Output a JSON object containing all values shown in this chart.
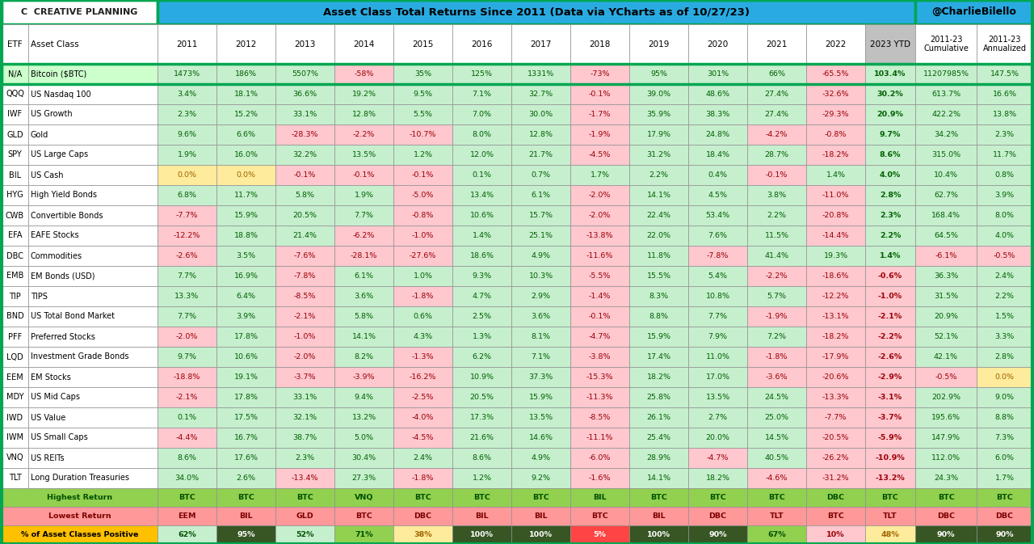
{
  "title": "Asset Class Total Returns Since 2011 (Data via YCharts as of 10/27/23)",
  "logo_text": "C  CREATIVE PLANNING",
  "twitter": "@CharlieBilello",
  "rows": [
    {
      "etf": "N/A",
      "name": "Bitcoin ($BTC)",
      "vals": [
        "1473%",
        "186%",
        "5507%",
        "-58%",
        "35%",
        "125%",
        "1331%",
        "-73%",
        "95%",
        "301%",
        "66%",
        "-65.5%",
        "103.4%",
        "11207985%",
        "147.5%"
      ]
    },
    {
      "etf": "QQQ",
      "name": "US Nasdaq 100",
      "vals": [
        "3.4%",
        "18.1%",
        "36.6%",
        "19.2%",
        "9.5%",
        "7.1%",
        "32.7%",
        "-0.1%",
        "39.0%",
        "48.6%",
        "27.4%",
        "-32.6%",
        "30.2%",
        "613.7%",
        "16.6%"
      ]
    },
    {
      "etf": "IWF",
      "name": "US Growth",
      "vals": [
        "2.3%",
        "15.2%",
        "33.1%",
        "12.8%",
        "5.5%",
        "7.0%",
        "30.0%",
        "-1.7%",
        "35.9%",
        "38.3%",
        "27.4%",
        "-29.3%",
        "20.9%",
        "422.2%",
        "13.8%"
      ]
    },
    {
      "etf": "GLD",
      "name": "Gold",
      "vals": [
        "9.6%",
        "6.6%",
        "-28.3%",
        "-2.2%",
        "-10.7%",
        "8.0%",
        "12.8%",
        "-1.9%",
        "17.9%",
        "24.8%",
        "-4.2%",
        "-0.8%",
        "9.7%",
        "34.2%",
        "2.3%"
      ]
    },
    {
      "etf": "SPY",
      "name": "US Large Caps",
      "vals": [
        "1.9%",
        "16.0%",
        "32.2%",
        "13.5%",
        "1.2%",
        "12.0%",
        "21.7%",
        "-4.5%",
        "31.2%",
        "18.4%",
        "28.7%",
        "-18.2%",
        "8.6%",
        "315.0%",
        "11.7%"
      ]
    },
    {
      "etf": "BIL",
      "name": "US Cash",
      "vals": [
        "0.0%",
        "0.0%",
        "-0.1%",
        "-0.1%",
        "-0.1%",
        "0.1%",
        "0.7%",
        "1.7%",
        "2.2%",
        "0.4%",
        "-0.1%",
        "1.4%",
        "4.0%",
        "10.4%",
        "0.8%"
      ]
    },
    {
      "etf": "HYG",
      "name": "High Yield Bonds",
      "vals": [
        "6.8%",
        "11.7%",
        "5.8%",
        "1.9%",
        "-5.0%",
        "13.4%",
        "6.1%",
        "-2.0%",
        "14.1%",
        "4.5%",
        "3.8%",
        "-11.0%",
        "2.8%",
        "62.7%",
        "3.9%"
      ]
    },
    {
      "etf": "CWB",
      "name": "Convertible Bonds",
      "vals": [
        "-7.7%",
        "15.9%",
        "20.5%",
        "7.7%",
        "-0.8%",
        "10.6%",
        "15.7%",
        "-2.0%",
        "22.4%",
        "53.4%",
        "2.2%",
        "-20.8%",
        "2.3%",
        "168.4%",
        "8.0%"
      ]
    },
    {
      "etf": "EFA",
      "name": "EAFE Stocks",
      "vals": [
        "-12.2%",
        "18.8%",
        "21.4%",
        "-6.2%",
        "-1.0%",
        "1.4%",
        "25.1%",
        "-13.8%",
        "22.0%",
        "7.6%",
        "11.5%",
        "-14.4%",
        "2.2%",
        "64.5%",
        "4.0%"
      ]
    },
    {
      "etf": "DBC",
      "name": "Commodities",
      "vals": [
        "-2.6%",
        "3.5%",
        "-7.6%",
        "-28.1%",
        "-27.6%",
        "18.6%",
        "4.9%",
        "-11.6%",
        "11.8%",
        "-7.8%",
        "41.4%",
        "19.3%",
        "1.4%",
        "-6.1%",
        "-0.5%"
      ]
    },
    {
      "etf": "EMB",
      "name": "EM Bonds (USD)",
      "vals": [
        "7.7%",
        "16.9%",
        "-7.8%",
        "6.1%",
        "1.0%",
        "9.3%",
        "10.3%",
        "-5.5%",
        "15.5%",
        "5.4%",
        "-2.2%",
        "-18.6%",
        "-0.6%",
        "36.3%",
        "2.4%"
      ]
    },
    {
      "etf": "TIP",
      "name": "TIPS",
      "vals": [
        "13.3%",
        "6.4%",
        "-8.5%",
        "3.6%",
        "-1.8%",
        "4.7%",
        "2.9%",
        "-1.4%",
        "8.3%",
        "10.8%",
        "5.7%",
        "-12.2%",
        "-1.0%",
        "31.5%",
        "2.2%"
      ]
    },
    {
      "etf": "BND",
      "name": "US Total Bond Market",
      "vals": [
        "7.7%",
        "3.9%",
        "-2.1%",
        "5.8%",
        "0.6%",
        "2.5%",
        "3.6%",
        "-0.1%",
        "8.8%",
        "7.7%",
        "-1.9%",
        "-13.1%",
        "-2.1%",
        "20.9%",
        "1.5%"
      ]
    },
    {
      "etf": "PFF",
      "name": "Preferred Stocks",
      "vals": [
        "-2.0%",
        "17.8%",
        "-1.0%",
        "14.1%",
        "4.3%",
        "1.3%",
        "8.1%",
        "-4.7%",
        "15.9%",
        "7.9%",
        "7.2%",
        "-18.2%",
        "-2.2%",
        "52.1%",
        "3.3%"
      ]
    },
    {
      "etf": "LQD",
      "name": "Investment Grade Bonds",
      "vals": [
        "9.7%",
        "10.6%",
        "-2.0%",
        "8.2%",
        "-1.3%",
        "6.2%",
        "7.1%",
        "-3.8%",
        "17.4%",
        "11.0%",
        "-1.8%",
        "-17.9%",
        "-2.6%",
        "42.1%",
        "2.8%"
      ]
    },
    {
      "etf": "EEM",
      "name": "EM Stocks",
      "vals": [
        "-18.8%",
        "19.1%",
        "-3.7%",
        "-3.9%",
        "-16.2%",
        "10.9%",
        "37.3%",
        "-15.3%",
        "18.2%",
        "17.0%",
        "-3.6%",
        "-20.6%",
        "-2.9%",
        "-0.5%",
        "0.0%"
      ]
    },
    {
      "etf": "MDY",
      "name": "US Mid Caps",
      "vals": [
        "-2.1%",
        "17.8%",
        "33.1%",
        "9.4%",
        "-2.5%",
        "20.5%",
        "15.9%",
        "-11.3%",
        "25.8%",
        "13.5%",
        "24.5%",
        "-13.3%",
        "-3.1%",
        "202.9%",
        "9.0%"
      ]
    },
    {
      "etf": "IWD",
      "name": "US Value",
      "vals": [
        "0.1%",
        "17.5%",
        "32.1%",
        "13.2%",
        "-4.0%",
        "17.3%",
        "13.5%",
        "-8.5%",
        "26.1%",
        "2.7%",
        "25.0%",
        "-7.7%",
        "-3.7%",
        "195.6%",
        "8.8%"
      ]
    },
    {
      "etf": "IWM",
      "name": "US Small Caps",
      "vals": [
        "-4.4%",
        "16.7%",
        "38.7%",
        "5.0%",
        "-4.5%",
        "21.6%",
        "14.6%",
        "-11.1%",
        "25.4%",
        "20.0%",
        "14.5%",
        "-20.5%",
        "-5.9%",
        "147.9%",
        "7.3%"
      ]
    },
    {
      "etf": "VNQ",
      "name": "US REITs",
      "vals": [
        "8.6%",
        "17.6%",
        "2.3%",
        "30.4%",
        "2.4%",
        "8.6%",
        "4.9%",
        "-6.0%",
        "28.9%",
        "-4.7%",
        "40.5%",
        "-26.2%",
        "-10.9%",
        "112.0%",
        "6.0%"
      ]
    },
    {
      "etf": "TLT",
      "name": "Long Duration Treasuries",
      "vals": [
        "34.0%",
        "2.6%",
        "-13.4%",
        "27.3%",
        "-1.8%",
        "1.2%",
        "9.2%",
        "-1.6%",
        "14.1%",
        "18.2%",
        "-4.6%",
        "-31.2%",
        "-13.2%",
        "24.3%",
        "1.7%"
      ]
    }
  ],
  "highest": [
    "BTC",
    "BTC",
    "BTC",
    "VNQ",
    "BTC",
    "BTC",
    "BTC",
    "BIL",
    "BTC",
    "BTC",
    "BTC",
    "DBC",
    "BTC",
    "BTC",
    "BTC"
  ],
  "lowest": [
    "EEM",
    "BIL",
    "GLD",
    "BTC",
    "DBC",
    "BIL",
    "BIL",
    "BTC",
    "BIL",
    "DBC",
    "TLT",
    "BTC",
    "TLT",
    "DBC",
    "DBC"
  ],
  "pct_positive": [
    "62%",
    "95%",
    "52%",
    "71%",
    "38%",
    "100%",
    "100%",
    "5%",
    "100%",
    "90%",
    "67%",
    "10%",
    "48%",
    "90%",
    "90%"
  ],
  "header_blue": "#29ABE2",
  "border_green": "#00A651",
  "pos_bg": "#C6EFCE",
  "pos_tc": "#006100",
  "neg_bg": "#FFC7CE",
  "neg_tc": "#9C0006",
  "zero_bg": "#FFEB9C",
  "zero_tc": "#9C6500",
  "ytd_gray": "#C0C0C0",
  "btc_row_bg": "#CCFFCC",
  "footer_highest_bg": "#92D050",
  "footer_lowest_bg": "#FF9999",
  "footer_pct_label_bg": "#FFC000"
}
